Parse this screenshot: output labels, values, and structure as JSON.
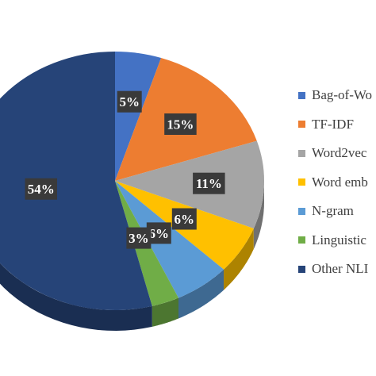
{
  "chart_data": {
    "type": "pie",
    "title": "",
    "slices": [
      {
        "label": "Bag-of-Words",
        "legend_text": "Bag-of-Wo",
        "value": 5,
        "value_label": "5%",
        "color": "#4472C4"
      },
      {
        "label": "TF-IDF",
        "legend_text": "TF-IDF",
        "value": 15,
        "value_label": "15%",
        "color": "#ED7D31"
      },
      {
        "label": "Word2vec",
        "legend_text": "Word2vec",
        "value": 11,
        "value_label": "11%",
        "color": "#A5A5A5"
      },
      {
        "label": "Word embedding",
        "legend_text": "Word emb",
        "value": 6,
        "value_label": "6%",
        "color": "#FFC000"
      },
      {
        "label": "N-gram",
        "legend_text": "N-gram",
        "value": 6,
        "value_label": "6%",
        "color": "#5B9BD5"
      },
      {
        "label": "Linguistic",
        "legend_text": "Linguistic",
        "value": 3,
        "value_label": "3%",
        "color": "#70AD47"
      },
      {
        "label": "Other NLP",
        "legend_text": "Other NLI",
        "value": 54,
        "value_label": "54%",
        "color": "#264478"
      }
    ],
    "legend_position": "right",
    "style": "3d-tilted",
    "label_box_color": "#3A3A3A",
    "label_text_color": "#FFFFFF"
  }
}
